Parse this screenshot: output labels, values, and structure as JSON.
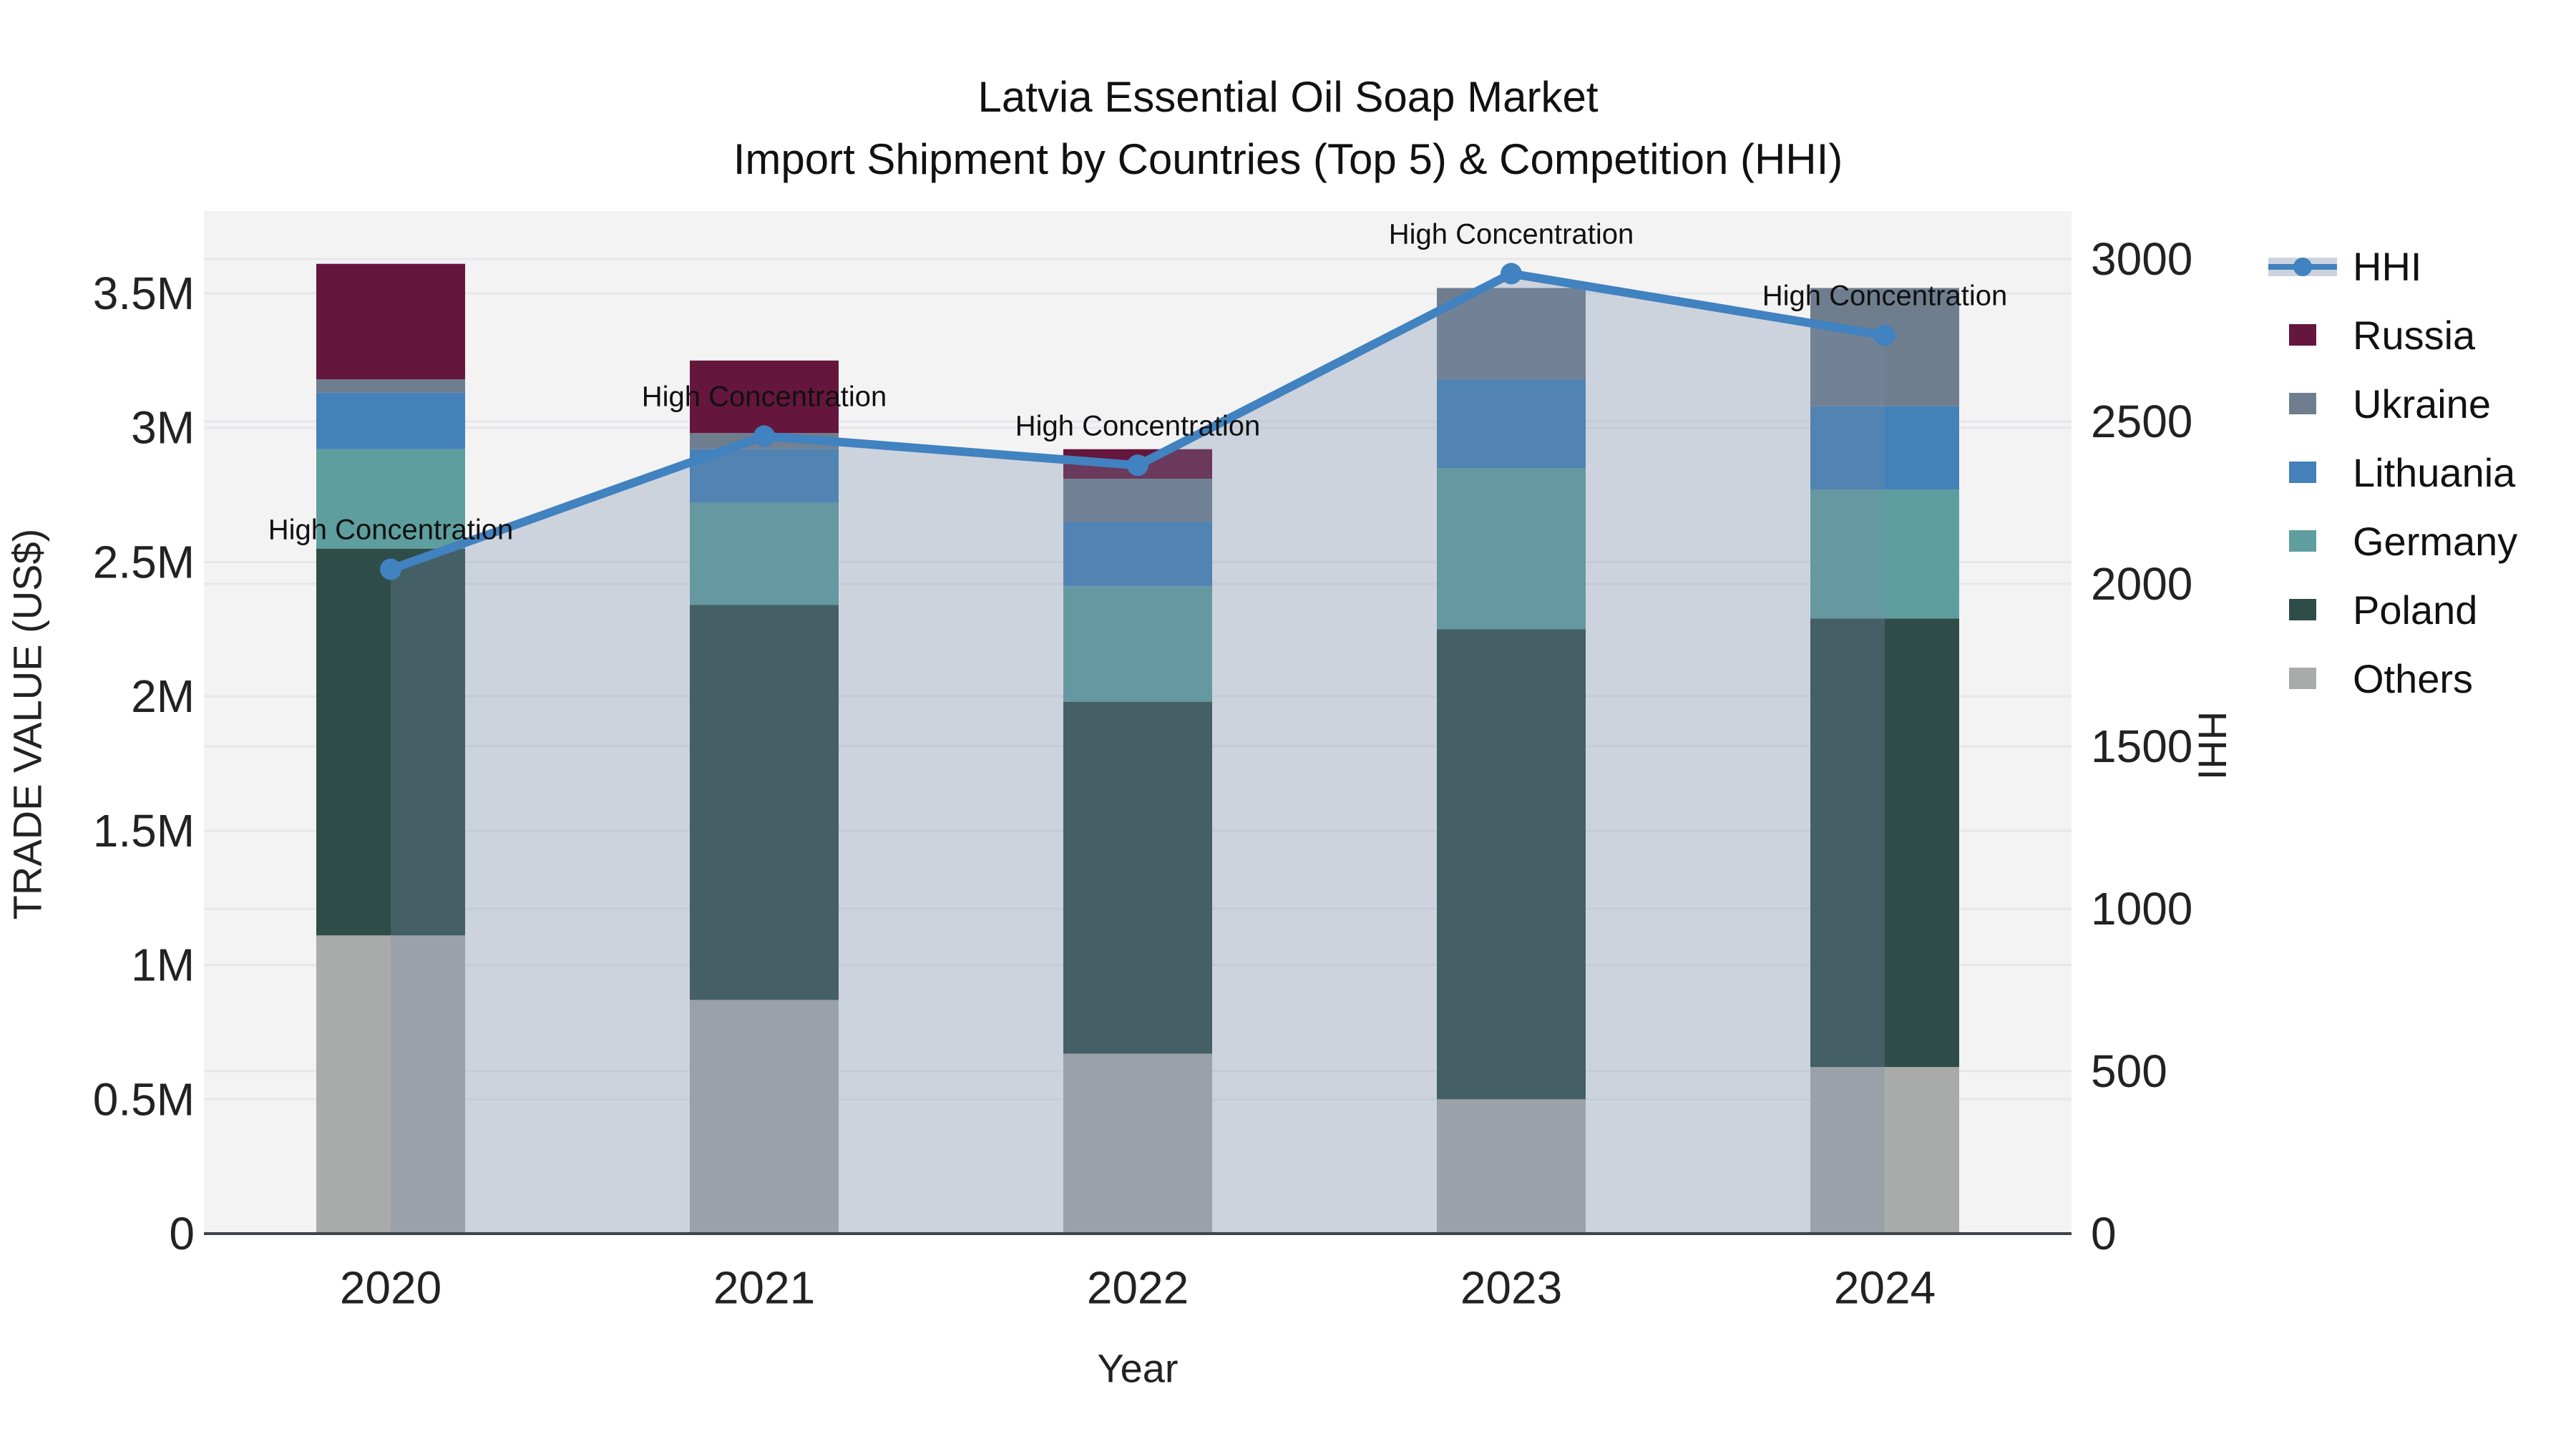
{
  "title": {
    "line1": "Latvia Essential Oil Soap Market",
    "line2": "Import Shipment by Countries (Top 5) & Competition (HHI)"
  },
  "axes": {
    "x": {
      "title": "Year",
      "tick_labels": [
        "2020",
        "2021",
        "2022",
        "2023",
        "2024"
      ]
    },
    "y_left": {
      "title": "TRADE VALUE (US$)",
      "tick_labels": [
        "0",
        "0.5M",
        "1M",
        "1.5M",
        "2M",
        "2.5M",
        "3M",
        "3.5M"
      ],
      "tick_values_musd": [
        0,
        0.5,
        1,
        1.5,
        2,
        2.5,
        3,
        3.5
      ]
    },
    "y_right": {
      "title": "HHI",
      "tick_labels": [
        "0",
        "500",
        "1000",
        "1500",
        "2000",
        "2500",
        "3000"
      ],
      "tick_values": [
        0,
        500,
        1000,
        1500,
        2000,
        2500,
        3000
      ]
    }
  },
  "legend": {
    "items": [
      {
        "label": "HHI",
        "type": "line",
        "color": "#4182C0",
        "band_color": "#CCD3DE"
      },
      {
        "label": "Russia",
        "type": "swatch",
        "color": "#65163C"
      },
      {
        "label": "Ukraine",
        "type": "swatch",
        "color": "#6F7E8F"
      },
      {
        "label": "Lithuania",
        "type": "swatch",
        "color": "#4381B8"
      },
      {
        "label": "Germany",
        "type": "swatch",
        "color": "#5F9E9E"
      },
      {
        "label": "Poland",
        "type": "swatch",
        "color": "#2F4D48"
      },
      {
        "label": "Others",
        "type": "swatch",
        "color": "#A9ABAA"
      }
    ]
  },
  "chart_data": {
    "type": "bar",
    "subtype": "stacked-bars-left-axis-plus-hhi-line-area-right-axis",
    "title": "Latvia Essential Oil Soap Market — Import Shipment by Countries (Top 5) & Competition (HHI)",
    "categories": [
      "2020",
      "2021",
      "2022",
      "2023",
      "2024"
    ],
    "stack_order": "bottom_to_top",
    "series": [
      {
        "name": "Others",
        "color": "#A9ABAA",
        "values_usd_millions": [
          1.11,
          0.87,
          0.67,
          0.5,
          0.62
        ]
      },
      {
        "name": "Poland",
        "color": "#2F4D48",
        "values_usd_millions": [
          1.44,
          1.47,
          1.31,
          1.75,
          1.67
        ]
      },
      {
        "name": "Germany",
        "color": "#5F9E9E",
        "values_usd_millions": [
          0.37,
          0.38,
          0.43,
          0.6,
          0.48
        ]
      },
      {
        "name": "Lithuania",
        "color": "#4381B8",
        "values_usd_millions": [
          0.21,
          0.2,
          0.24,
          0.33,
          0.31
        ]
      },
      {
        "name": "Ukraine",
        "color": "#6F7E8F",
        "values_usd_millions": [
          0.05,
          0.06,
          0.16,
          0.34,
          0.44
        ]
      },
      {
        "name": "Russia",
        "color": "#65163C",
        "values_usd_millions": [
          0.43,
          0.27,
          0.11,
          0,
          0
        ]
      }
    ],
    "line_series": {
      "name": "HHI",
      "color": "#4182C0",
      "area_fill": "rgba(120,140,170,0.30)",
      "marker": true,
      "values": [
        2045,
        2455,
        2365,
        2955,
        2765
      ]
    },
    "annotations": [
      {
        "x": "2020",
        "text": "High Concentration"
      },
      {
        "x": "2021",
        "text": "High Concentration"
      },
      {
        "x": "2022",
        "text": "High Concentration"
      },
      {
        "x": "2023",
        "text": "High Concentration"
      },
      {
        "x": "2024",
        "text": "High Concentration"
      }
    ],
    "xlabel": "Year",
    "ylabel_left": "TRADE VALUE (US$)",
    "ylabel_right": "HHI",
    "ylim_left_musd": [
      0,
      3.81
    ],
    "ylim_right": [
      0,
      3150
    ],
    "grid": true,
    "legend_position": "right",
    "plot_bg": "#F3F3F4",
    "grid_color": "#E7E7EA",
    "axis_line_color": "#3F434A",
    "text_color": "#222222"
  }
}
